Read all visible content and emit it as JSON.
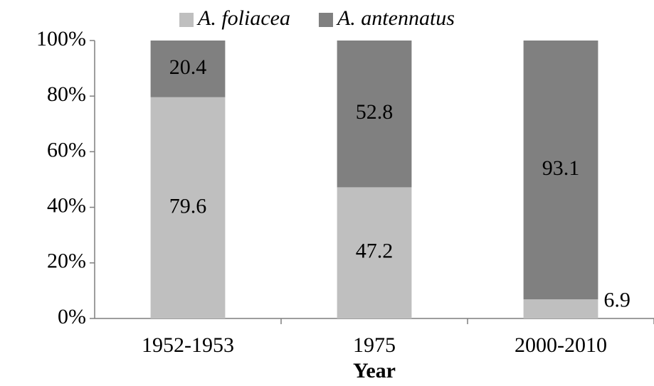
{
  "chart_data": {
    "type": "stacked_bar",
    "x_label": "Year",
    "categories": [
      "1952-1953",
      "1975",
      "2000-2010"
    ],
    "series": [
      {
        "name": "A. foliacea",
        "color": "#bfbfbf",
        "values": [
          79.6,
          47.2,
          6.9
        ]
      },
      {
        "name": "A. antennatus",
        "color": "#808080",
        "values": [
          20.4,
          52.8,
          93.1
        ]
      }
    ],
    "ylim": [
      0,
      100
    ],
    "yticks": [
      {
        "value": 0,
        "label": "0%"
      },
      {
        "value": 20,
        "label": "20%"
      },
      {
        "value": 40,
        "label": "40%"
      },
      {
        "value": 60,
        "label": "60%"
      },
      {
        "value": 80,
        "label": "80%"
      },
      {
        "value": 100,
        "label": "100%"
      }
    ],
    "legend": "top",
    "grid": false
  }
}
